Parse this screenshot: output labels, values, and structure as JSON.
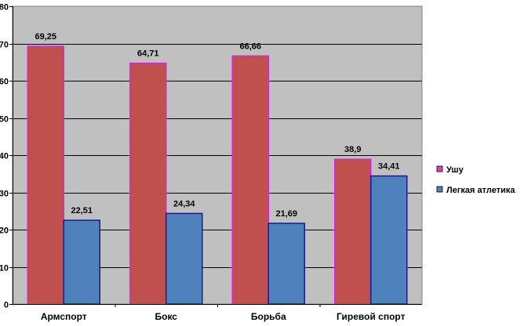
{
  "chart_data": {
    "type": "bar",
    "categories": [
      "Армспорт",
      "Бокс",
      "Борьба",
      "Гиревой спорт"
    ],
    "series": [
      {
        "name": "Ушу",
        "values": [
          69.25,
          64.71,
          66.66,
          38.9
        ],
        "labels": [
          "69,25",
          "64,71",
          "66,66",
          "38,9"
        ]
      },
      {
        "name": "Легкая атлетика",
        "values": [
          22.51,
          24.34,
          21.69,
          34.41
        ],
        "labels": [
          "22,51",
          "24,34",
          "21,69",
          "34,41"
        ]
      }
    ],
    "title": "",
    "xlabel": "",
    "ylabel": "",
    "ylim": [
      0,
      80
    ],
    "yticks": [
      0,
      10,
      20,
      30,
      40,
      50,
      60,
      70,
      80
    ],
    "grid": true,
    "legend_position": "right",
    "colors": {
      "series_fill": [
        "#c0504d",
        "#4f81bd"
      ],
      "series_stroke": [
        "#e020e0",
        "#1a1a8c"
      ],
      "legend_swatch": [
        "#e040c0",
        "#4f81bd"
      ],
      "plot_background": "#c0c0c0",
      "gridline": "#000000"
    }
  }
}
